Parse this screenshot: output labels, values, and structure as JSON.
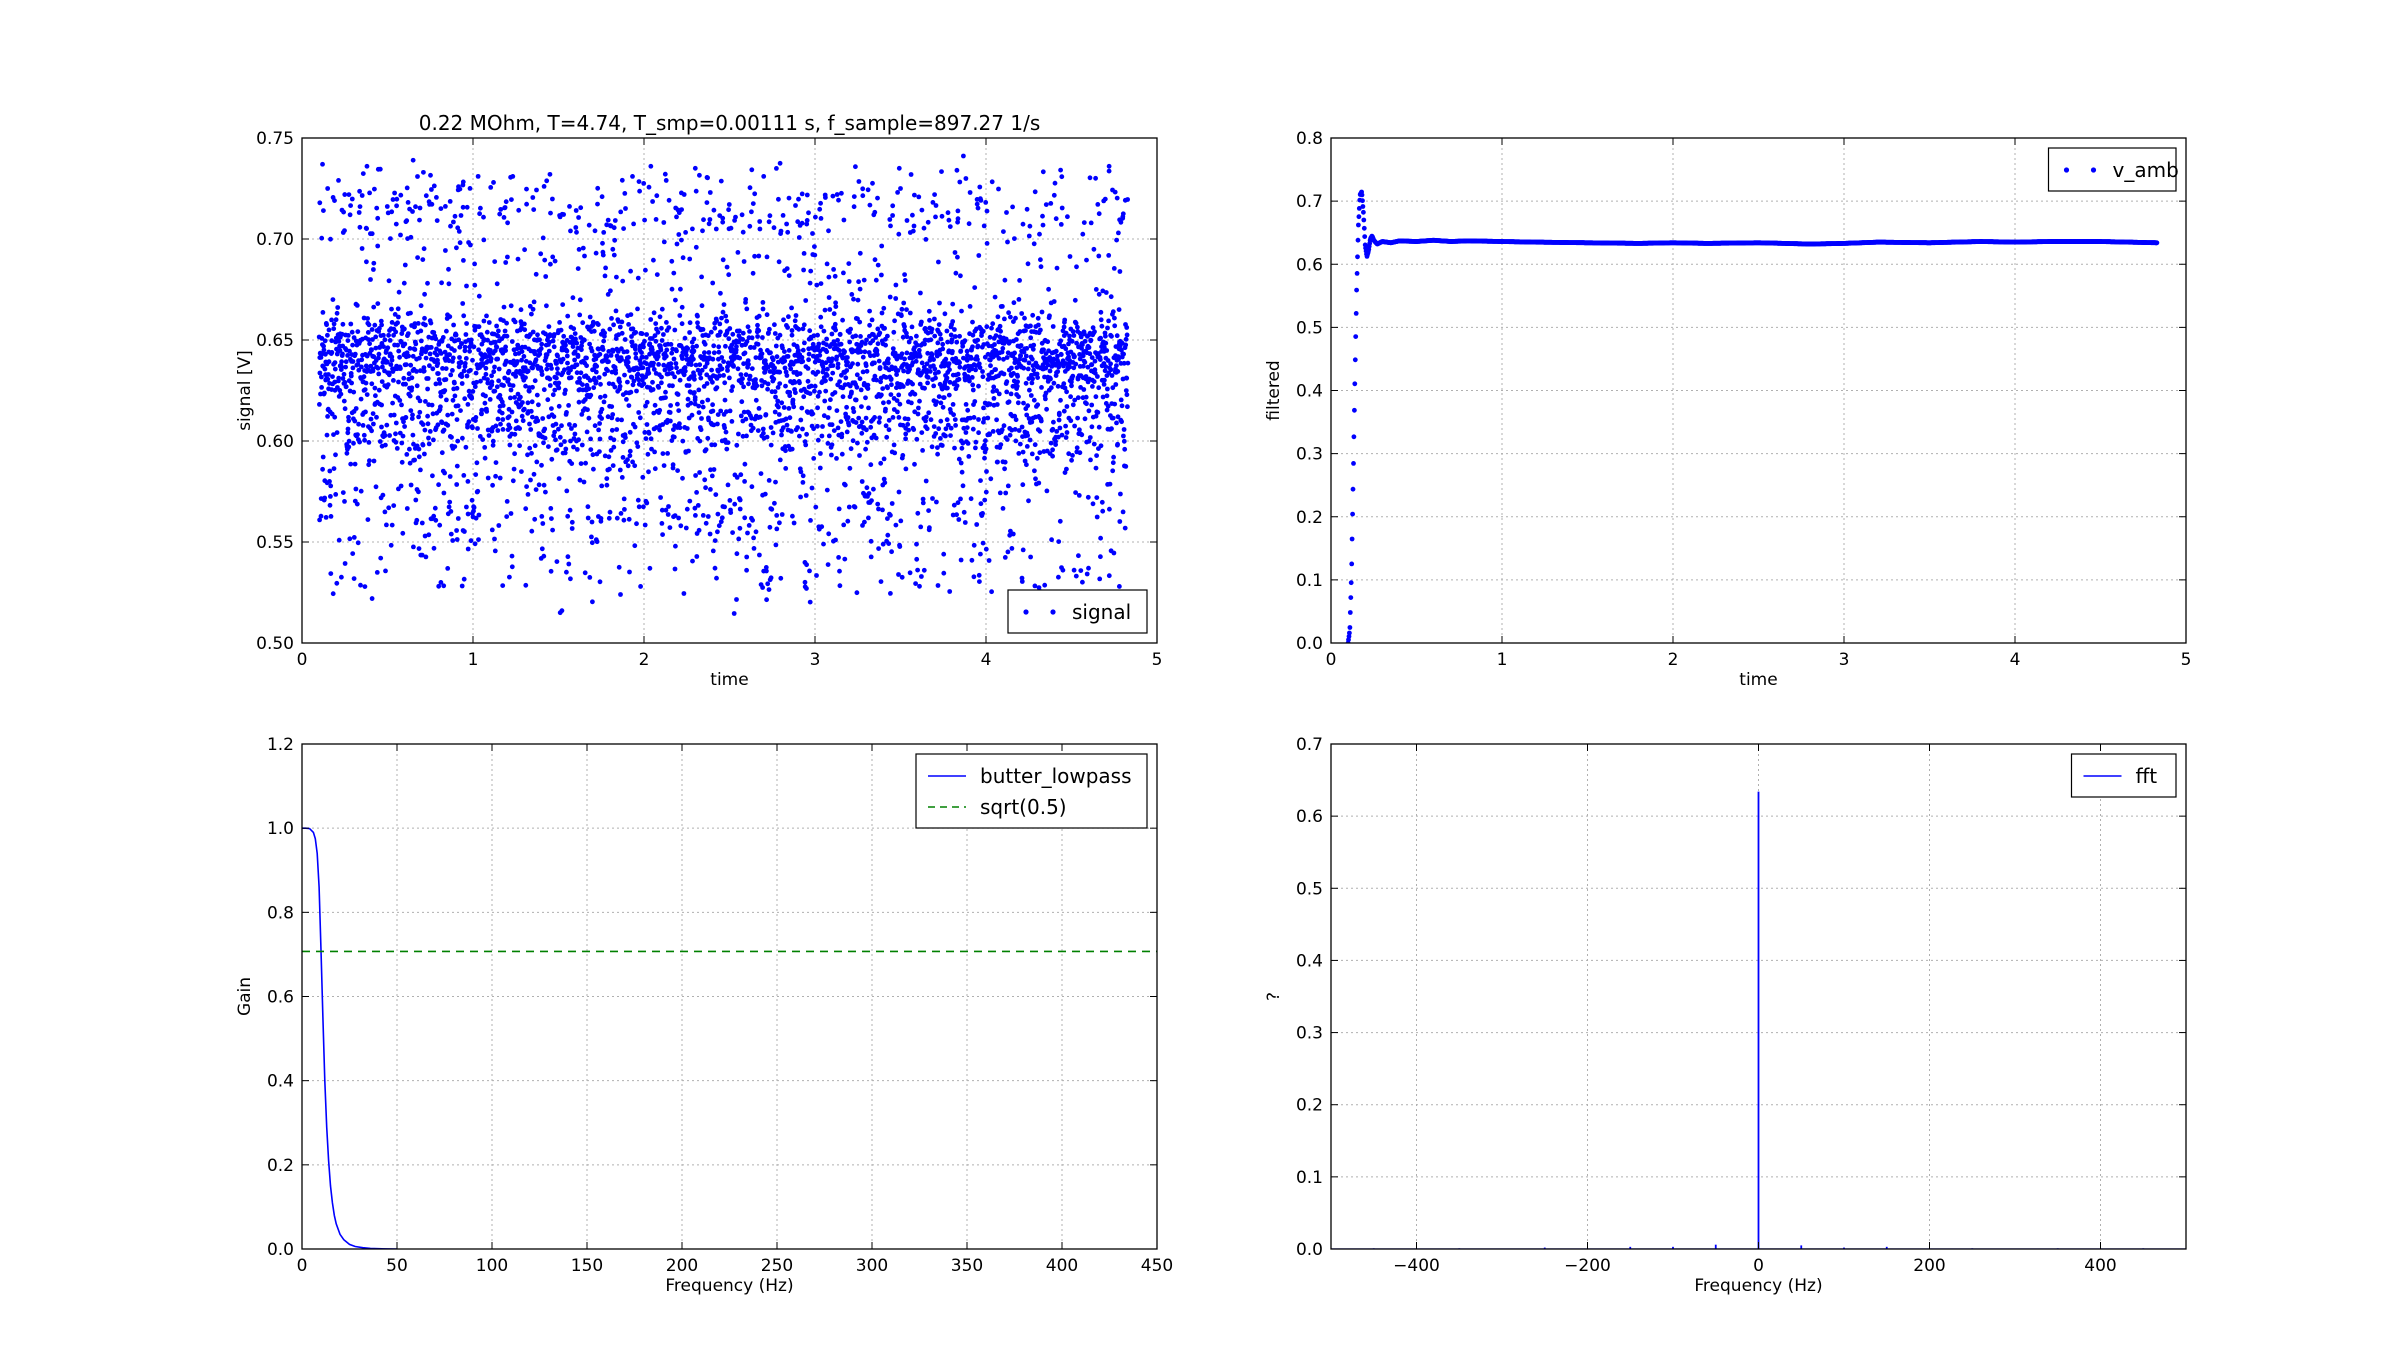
{
  "chart_data": [
    {
      "id": "tl",
      "type": "scatter",
      "title": "0.22 MOhm, T=4.74, T_smp=0.00111 s, f_sample=897.27 1/s",
      "xlabel": "time",
      "ylabel": "signal [V]",
      "xlim": [
        0,
        5
      ],
      "ylim": [
        0.5,
        0.75
      ],
      "xticks": [
        0,
        1,
        2,
        3,
        4,
        5
      ],
      "xtick_labels": [
        "0",
        "1",
        "2",
        "3",
        "4",
        "5"
      ],
      "yticks": [
        0.5,
        0.55,
        0.6,
        0.65,
        0.7,
        0.75
      ],
      "ytick_labels": [
        "0.50",
        "0.55",
        "0.60",
        "0.65",
        "0.70",
        "0.75"
      ],
      "grid": true,
      "legend": {
        "placement": "lower-right",
        "entries": [
          {
            "label": "signal",
            "style": "dots",
            "color": "#0000ff"
          }
        ]
      },
      "series": [
        {
          "name": "signal",
          "color": "#0000ff",
          "x_range": [
            0.1,
            4.83
          ],
          "points": 4250,
          "levels": [
            {
              "value": 0.64,
              "spread": 0.012,
              "weight": 0.58
            },
            {
              "value": 0.607,
              "spread": 0.008,
              "weight": 0.16
            },
            {
              "value": 0.715,
              "spread": 0.01,
              "weight": 0.08
            },
            {
              "value": 0.565,
              "spread": 0.01,
              "weight": 0.08
            },
            {
              "value": 0.535,
              "spread": 0.008,
              "weight": 0.03
            },
            {
              "value": 0.685,
              "spread": 0.012,
              "weight": 0.03
            },
            {
              "value": 0.592,
              "spread": 0.01,
              "weight": 0.04
            }
          ],
          "samples": [
            [
              0.12,
              0.737
            ],
            [
              0.15,
              0.725
            ],
            [
              0.25,
              0.722
            ],
            [
              0.38,
              0.736
            ],
            [
              0.42,
              0.688
            ],
            [
              0.41,
              0.522
            ],
            [
              0.65,
              0.739
            ],
            [
              0.71,
              0.733
            ],
            [
              1.03,
              0.731
            ],
            [
              1.12,
              0.728
            ],
            [
              1.45,
              0.732
            ],
            [
              1.52,
              0.516
            ],
            [
              1.57,
              0.704
            ],
            [
              1.72,
              0.693
            ],
            [
              2.04,
              0.736
            ],
            [
              2.13,
              0.729
            ],
            [
              2.3,
              0.735
            ],
            [
              2.7,
              0.731
            ],
            [
              2.95,
              0.527
            ],
            [
              3.12,
              0.551
            ],
            [
              3.5,
              0.725
            ],
            [
              3.83,
              0.734
            ],
            [
              4.54,
              0.523
            ],
            [
              4.72,
              0.736
            ],
            [
              4.78,
              0.528
            ],
            [
              4.8,
              0.711
            ],
            [
              1.98,
              0.528
            ],
            [
              2.6,
              0.536
            ]
          ]
        }
      ]
    },
    {
      "id": "tr",
      "type": "scatter",
      "title": "",
      "xlabel": "time",
      "ylabel": "filtered",
      "xlim": [
        0,
        5
      ],
      "ylim": [
        0,
        0.8
      ],
      "xticks": [
        0,
        1,
        2,
        3,
        4,
        5
      ],
      "xtick_labels": [
        "0",
        "1",
        "2",
        "3",
        "4",
        "5"
      ],
      "yticks": [
        0,
        0.1,
        0.2,
        0.3,
        0.4,
        0.5,
        0.6,
        0.7,
        0.8
      ],
      "ytick_labels": [
        "0.0",
        "0.1",
        "0.2",
        "0.3",
        "0.4",
        "0.5",
        "0.6",
        "0.7",
        "0.8"
      ],
      "grid": true,
      "legend": {
        "placement": "upper-right",
        "entries": [
          {
            "label": "v_amb",
            "style": "dots",
            "color": "#0000ff"
          }
        ]
      },
      "series": [
        {
          "name": "v_amb",
          "color": "#0000ff",
          "x": [
            0.1,
            0.11,
            0.12,
            0.13,
            0.14,
            0.15,
            0.16,
            0.17,
            0.18,
            0.19,
            0.2,
            0.21,
            0.22,
            0.23,
            0.24,
            0.25,
            0.27,
            0.3,
            0.35,
            0.4,
            0.5,
            0.6,
            0.7,
            0.8,
            1.0,
            1.2,
            1.5,
            1.8,
            2.0,
            2.2,
            2.5,
            2.8,
            3.0,
            3.2,
            3.5,
            3.8,
            4.0,
            4.2,
            4.5,
            4.83
          ],
          "y": [
            0.0,
            0.02,
            0.11,
            0.26,
            0.42,
            0.56,
            0.66,
            0.71,
            0.715,
            0.68,
            0.63,
            0.612,
            0.622,
            0.64,
            0.645,
            0.638,
            0.632,
            0.636,
            0.634,
            0.637,
            0.636,
            0.638,
            0.636,
            0.637,
            0.636,
            0.635,
            0.634,
            0.633,
            0.634,
            0.633,
            0.634,
            0.632,
            0.633,
            0.635,
            0.634,
            0.636,
            0.635,
            0.636,
            0.636,
            0.634
          ]
        }
      ]
    },
    {
      "id": "bl",
      "type": "line",
      "title": "",
      "xlabel": "Frequency (Hz)",
      "ylabel": "Gain",
      "xlim": [
        0,
        450
      ],
      "ylim": [
        0,
        1.2
      ],
      "xticks": [
        0,
        50,
        100,
        150,
        200,
        250,
        300,
        350,
        400,
        450
      ],
      "xtick_labels": [
        "0",
        "50",
        "100",
        "150",
        "200",
        "250",
        "300",
        "350",
        "400",
        "450"
      ],
      "yticks": [
        0,
        0.2,
        0.4,
        0.6,
        0.8,
        1.0,
        1.2
      ],
      "ytick_labels": [
        "0.0",
        "0.2",
        "0.4",
        "0.6",
        "0.8",
        "1.0",
        "1.2"
      ],
      "grid": true,
      "legend": {
        "placement": "upper-right",
        "entries": [
          {
            "label": "butter_lowpass",
            "style": "solid",
            "color": "#0000ff"
          },
          {
            "label": "sqrt(0.5)",
            "style": "dashed",
            "color": "#008000"
          }
        ]
      },
      "series": [
        {
          "name": "butter_lowpass",
          "color": "#0000ff",
          "style": "solid",
          "x": [
            0,
            2,
            4,
            6,
            7,
            8,
            9,
            10,
            11,
            12,
            13,
            14,
            15,
            16,
            17,
            18,
            20,
            22,
            25,
            28,
            32,
            36,
            40,
            45,
            50
          ],
          "y": [
            1.0,
            1.0,
            0.999,
            0.99,
            0.975,
            0.94,
            0.86,
            0.71,
            0.55,
            0.4,
            0.29,
            0.21,
            0.15,
            0.11,
            0.08,
            0.06,
            0.035,
            0.022,
            0.011,
            0.006,
            0.003,
            0.0015,
            0.0008,
            0.0003,
            0.0001
          ]
        },
        {
          "name": "sqrt(0.5)",
          "color": "#008000",
          "style": "dashed",
          "x": [
            0,
            450
          ],
          "y": [
            0.7071,
            0.7071
          ]
        }
      ]
    },
    {
      "id": "br",
      "type": "line",
      "title": "",
      "xlabel": "Frequency (Hz)",
      "ylabel": "?",
      "xlim": [
        -500,
        500
      ],
      "ylim": [
        0,
        0.7
      ],
      "xticks": [
        -400,
        -200,
        0,
        200,
        400
      ],
      "xtick_labels": [
        "−400",
        "−200",
        "0",
        "200",
        "400"
      ],
      "yticks": [
        0,
        0.1,
        0.2,
        0.3,
        0.4,
        0.5,
        0.6,
        0.7
      ],
      "ytick_labels": [
        "0.0",
        "0.1",
        "0.2",
        "0.3",
        "0.4",
        "0.5",
        "0.6",
        "0.7"
      ],
      "grid": true,
      "legend": {
        "placement": "upper-right",
        "entries": [
          {
            "label": "fft",
            "style": "solid",
            "color": "#0000ff"
          }
        ]
      },
      "series": [
        {
          "name": "fft",
          "color": "#0000ff",
          "style": "spikes",
          "x": [
            -450,
            -350,
            -250,
            -150,
            -100,
            -50,
            0,
            50,
            100,
            150,
            250,
            350,
            450
          ],
          "y": [
            0.001,
            0.001,
            0.002,
            0.003,
            0.003,
            0.006,
            0.634,
            0.005,
            0.002,
            0.003,
            0.001,
            0.001,
            0.001
          ]
        }
      ]
    }
  ]
}
